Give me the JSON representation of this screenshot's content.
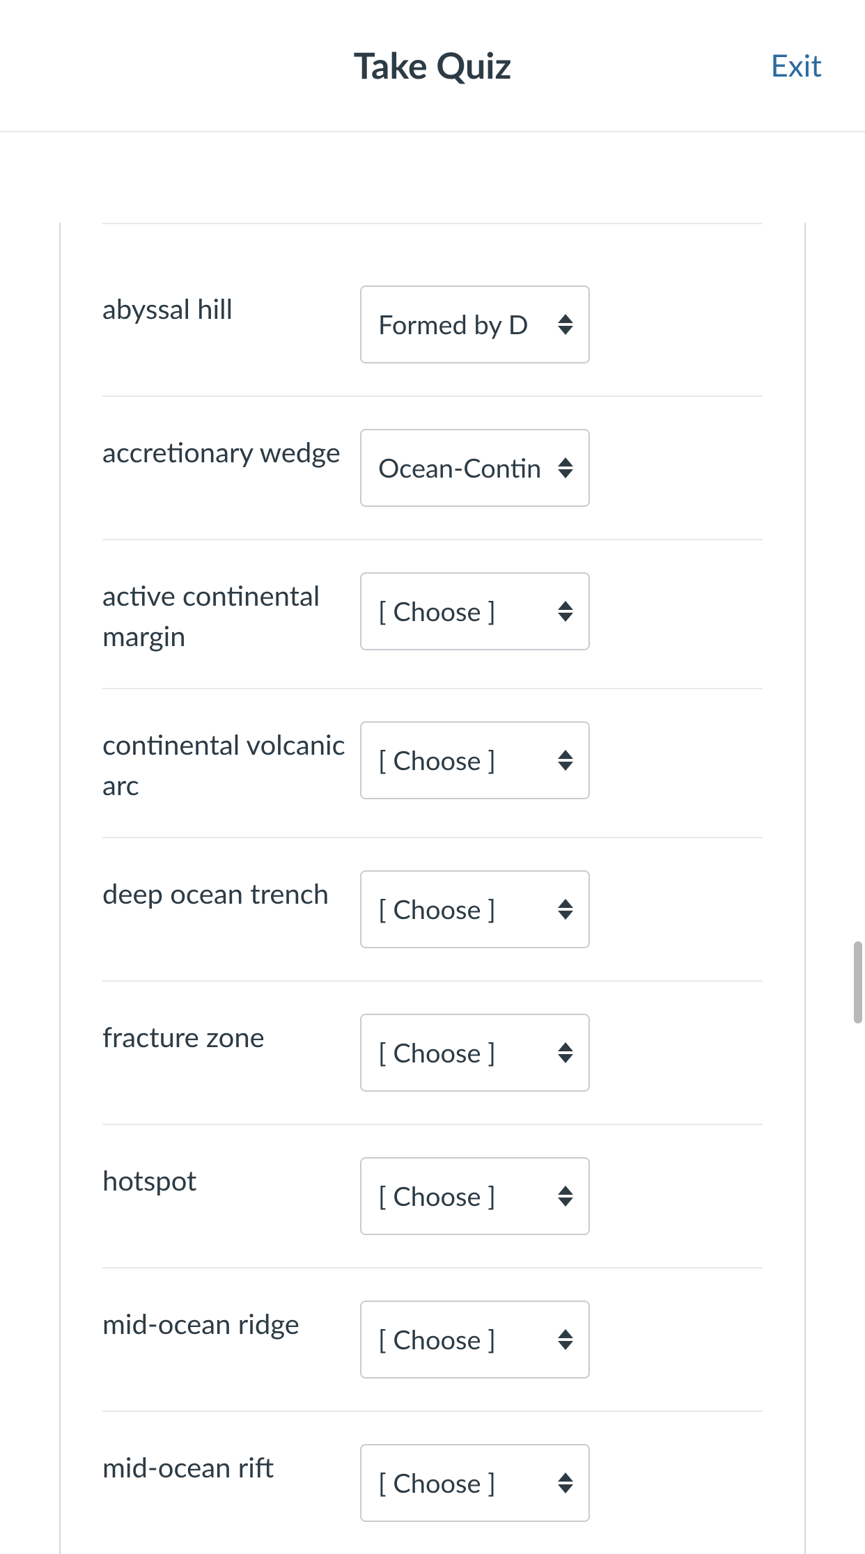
{
  "header": {
    "title": "Take Quiz",
    "exit_label": "Exit"
  },
  "quiz": {
    "default_choice": "[ Choose ]",
    "rows": [
      {
        "label": "abyssal hill",
        "selected": "Formed by D"
      },
      {
        "label": "accretionary wedge",
        "selected": "Ocean-Contin"
      },
      {
        "label": "active continental margin",
        "selected": "[ Choose ]"
      },
      {
        "label": "continental volcanic arc",
        "selected": "[ Choose ]"
      },
      {
        "label": "deep ocean trench",
        "selected": "[ Choose ]"
      },
      {
        "label": "fracture zone",
        "selected": "[ Choose ]"
      },
      {
        "label": "hotspot",
        "selected": "[ Choose ]"
      },
      {
        "label": "mid-ocean ridge",
        "selected": "[ Choose ]"
      },
      {
        "label": "mid-ocean rift",
        "selected": "[ Choose ]"
      }
    ]
  }
}
